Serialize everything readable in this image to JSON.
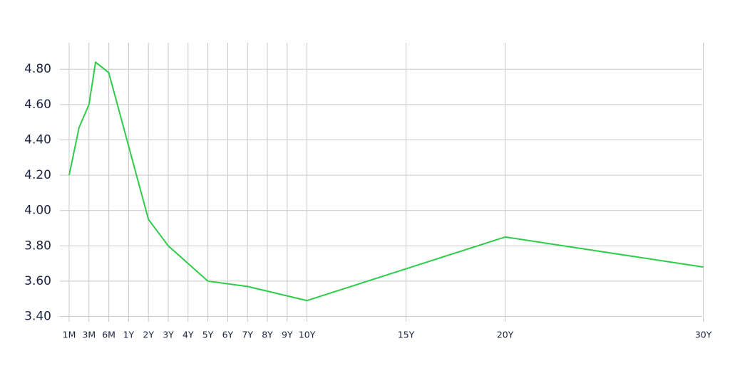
{
  "chart_data": {
    "type": "line",
    "x": [
      1,
      2,
      3,
      4,
      6,
      24,
      36,
      60,
      84,
      120,
      240,
      360
    ],
    "series": [
      {
        "color": "#2ecc4a",
        "values": [
          4.2,
          4.47,
          4.6,
          4.84,
          4.78,
          3.95,
          3.8,
          3.6,
          3.57,
          3.49,
          3.85,
          3.68
        ]
      }
    ],
    "xticks": [
      {
        "value": 1,
        "label": "1M"
      },
      {
        "value": 3,
        "label": "3M"
      },
      {
        "value": 6,
        "label": "6M"
      },
      {
        "value": 12,
        "label": "1Y"
      },
      {
        "value": 24,
        "label": "2Y"
      },
      {
        "value": 36,
        "label": "3Y"
      },
      {
        "value": 48,
        "label": "4Y"
      },
      {
        "value": 60,
        "label": "5Y"
      },
      {
        "value": 72,
        "label": "6Y"
      },
      {
        "value": 84,
        "label": "7Y"
      },
      {
        "value": 96,
        "label": "8Y"
      },
      {
        "value": 108,
        "label": "9Y"
      },
      {
        "value": 120,
        "label": "10Y"
      },
      {
        "value": 180,
        "label": "15Y"
      },
      {
        "value": 240,
        "label": "20Y"
      },
      {
        "value": 360,
        "label": "30Y"
      }
    ],
    "ylim": [
      3.37,
      4.95
    ],
    "yticks": [
      {
        "value": 3.4,
        "label": "3.40"
      },
      {
        "value": 3.6,
        "label": "3.60"
      },
      {
        "value": 3.8,
        "label": "3.80"
      },
      {
        "value": 4.0,
        "label": "4.00"
      },
      {
        "value": 4.2,
        "label": "4.20"
      },
      {
        "value": 4.4,
        "label": "4.40"
      },
      {
        "value": 4.6,
        "label": "4.60"
      },
      {
        "value": 4.8,
        "label": "4.80"
      }
    ],
    "grid": true
  }
}
